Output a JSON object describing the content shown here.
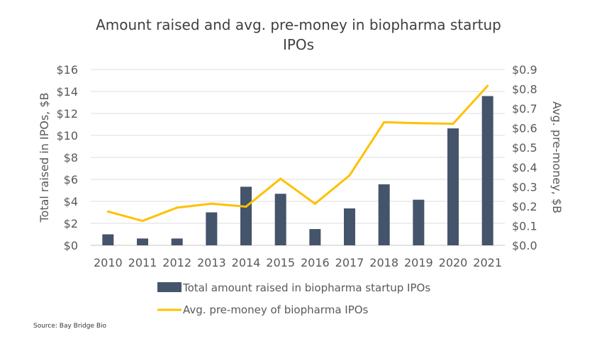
{
  "chart_data": {
    "type": "bar+line",
    "title": "Amount raised and avg. pre-money in biopharma startup IPOs",
    "categories": [
      "2010",
      "2011",
      "2012",
      "2013",
      "2014",
      "2015",
      "2016",
      "2017",
      "2018",
      "2019",
      "2020",
      "2021"
    ],
    "ylabel": "Total raised in IPOs, $B",
    "y2label": "Avg. pre-money, $B",
    "ylim": [
      0,
      16
    ],
    "y2lim": [
      0,
      0.9
    ],
    "yticks": [
      "$0",
      "$2",
      "$4",
      "$6",
      "$8",
      "$10",
      "$12",
      "$14",
      "$16"
    ],
    "y2ticks": [
      "$0.0",
      "$0.1",
      "$0.2",
      "$0.3",
      "$0.4",
      "$0.5",
      "$0.6",
      "$0.7",
      "$0.8",
      "$0.9"
    ],
    "grid": true,
    "legend_position": "bottom",
    "series": [
      {
        "name": "Total amount raised in biopharma startup IPOs",
        "type": "bar",
        "axis": "left",
        "color": "#44546a",
        "values": [
          1.0,
          0.62,
          0.62,
          3.0,
          5.33,
          4.69,
          1.48,
          3.36,
          5.55,
          4.15,
          10.64,
          13.58
        ]
      },
      {
        "name": "Avg. pre-money of biopharma IPOs",
        "type": "line",
        "axis": "right",
        "color": "#ffc000",
        "values": [
          0.173,
          0.125,
          0.193,
          0.213,
          0.198,
          0.341,
          0.213,
          0.358,
          0.63,
          0.625,
          0.622,
          0.816
        ]
      }
    ]
  },
  "source": "Source: Bay Bridge Bio"
}
